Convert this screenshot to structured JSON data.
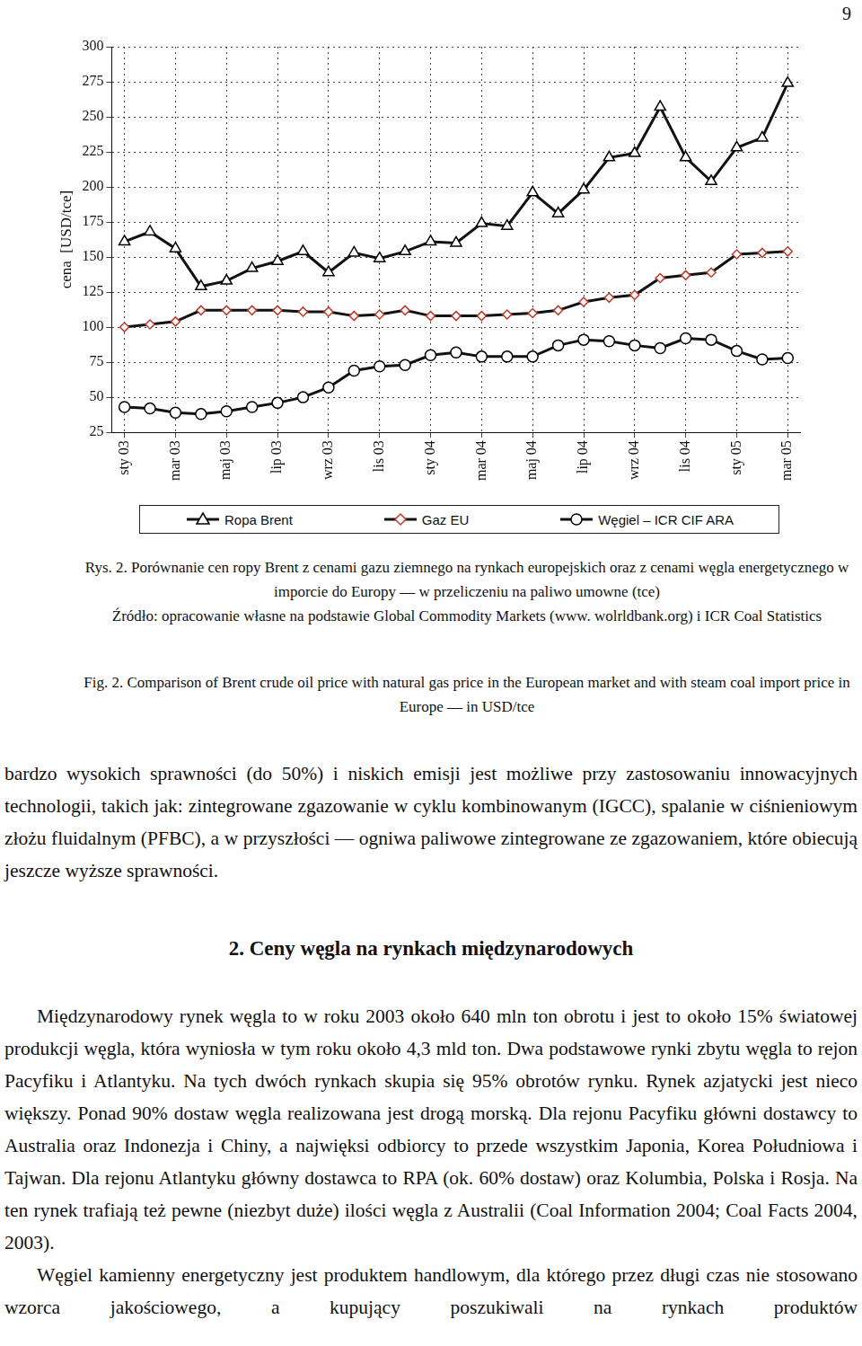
{
  "page_number": "9",
  "chart_data": {
    "type": "line",
    "y_label": "cena  [USD/tce]",
    "categories": [
      "sty 03",
      null,
      "mar 03",
      null,
      "maj 03",
      null,
      "lip 03",
      null,
      "wrz 03",
      null,
      "lis 03",
      null,
      "sty 04",
      null,
      "mar 04",
      null,
      "maj 04",
      null,
      "lip 04",
      null,
      "wrz 04",
      null,
      "lis 04",
      null,
      "sty 05",
      null,
      "mar 05"
    ],
    "series": [
      {
        "name": "Ropa Brent",
        "color": "#000000",
        "marker": "triangle",
        "values": [
          161,
          168,
          156,
          129,
          133,
          142,
          147,
          154,
          139,
          153,
          149,
          154,
          161,
          160,
          174,
          172,
          196,
          181,
          198,
          221,
          224,
          257,
          221,
          204,
          228,
          235,
          274
        ]
      },
      {
        "name": "Gaz EU",
        "color": "#c0392b",
        "marker": "diamond",
        "values": [
          100,
          102,
          104,
          112,
          112,
          112,
          112,
          111,
          111,
          108,
          109,
          112,
          108,
          108,
          108,
          109,
          110,
          112,
          118,
          121,
          123,
          135,
          137,
          139,
          152,
          153,
          154
        ]
      },
      {
        "name": "Węgiel – ICR CIF ARA",
        "color": "#000000",
        "marker": "circle",
        "values": [
          43,
          42,
          39,
          38,
          40,
          43,
          46,
          50,
          57,
          69,
          72,
          73,
          80,
          82,
          79,
          79,
          79,
          87,
          91,
          90,
          87,
          85,
          92,
          91,
          83,
          77,
          78
        ]
      }
    ],
    "ylim": [
      25,
      300
    ],
    "yticks": [
      25,
      50,
      75,
      100,
      125,
      150,
      175,
      200,
      225,
      250,
      275,
      300
    ],
    "grid": true,
    "legend": "bottom"
  },
  "caption": {
    "pl": "Rys. 2. Porównanie cen ropy Brent z cenami gazu ziemnego na rynkach europejskich oraz z cenami węgla energetycznego w imporcie do Europy — w przeliczeniu na paliwo umowne (tce)",
    "source": "Źródło: opracowanie własne na podstawie Global Commodity Markets (www. wolrldbank.org) i ICR Coal Statistics",
    "en": "Fig. 2. Comparison of Brent crude oil price with natural gas price in the European market and with steam coal import price in Europe — in USD/tce"
  },
  "body": {
    "continued_paragraph": "bardzo wysokich sprawności (do 50%) i niskich emisji jest możliwe przy zastosowaniu innowacyjnych technologii, takich jak: zintegrowane zgazowanie w cyklu kombinowanym (IGCC), spalanie w ciśnieniowym złożu fluidalnym (PFBC), a w przyszłości — ogniwa paliwowe zintegrowane ze zgazowaniem, które obiecują jeszcze wyższe sprawności.",
    "heading": "2. Ceny węgla na rynkach międzynarodowych",
    "paragraphs": [
      "Międzynarodowy rynek węgla to w roku 2003 około 640 mln ton obrotu i jest to około 15% światowej produkcji węgla, która wyniosła w tym roku około 4,3 mld ton. Dwa podstawowe rynki zbytu węgla to rejon Pacyfiku i Atlantyku. Na tych dwóch rynkach skupia się 95% obrotów rynku. Rynek azjatycki jest nieco większy. Ponad 90% dostaw węgla realizowana jest drogą morską. Dla rejonu Pacyfiku główni dostawcy to Australia oraz Indonezja i Chiny, a najwięksi odbiorcy to przede wszystkim Japonia, Korea Południowa i Tajwan. Dla rejonu Atlantyku główny dostawca to RPA (ok. 60% dostaw) oraz Kolumbia, Polska i Rosja. Na ten rynek trafiają też pewne (niezbyt duże) ilości węgla z Australii (Coal Information 2004; Coal Facts 2004, 2003).",
      "Węgiel kamienny energetyczny jest produktem handlowym, dla którego przez długi czas nie stosowano wzorca jakościowego, a kupujący poszukiwali na rynkach produktów"
    ]
  }
}
